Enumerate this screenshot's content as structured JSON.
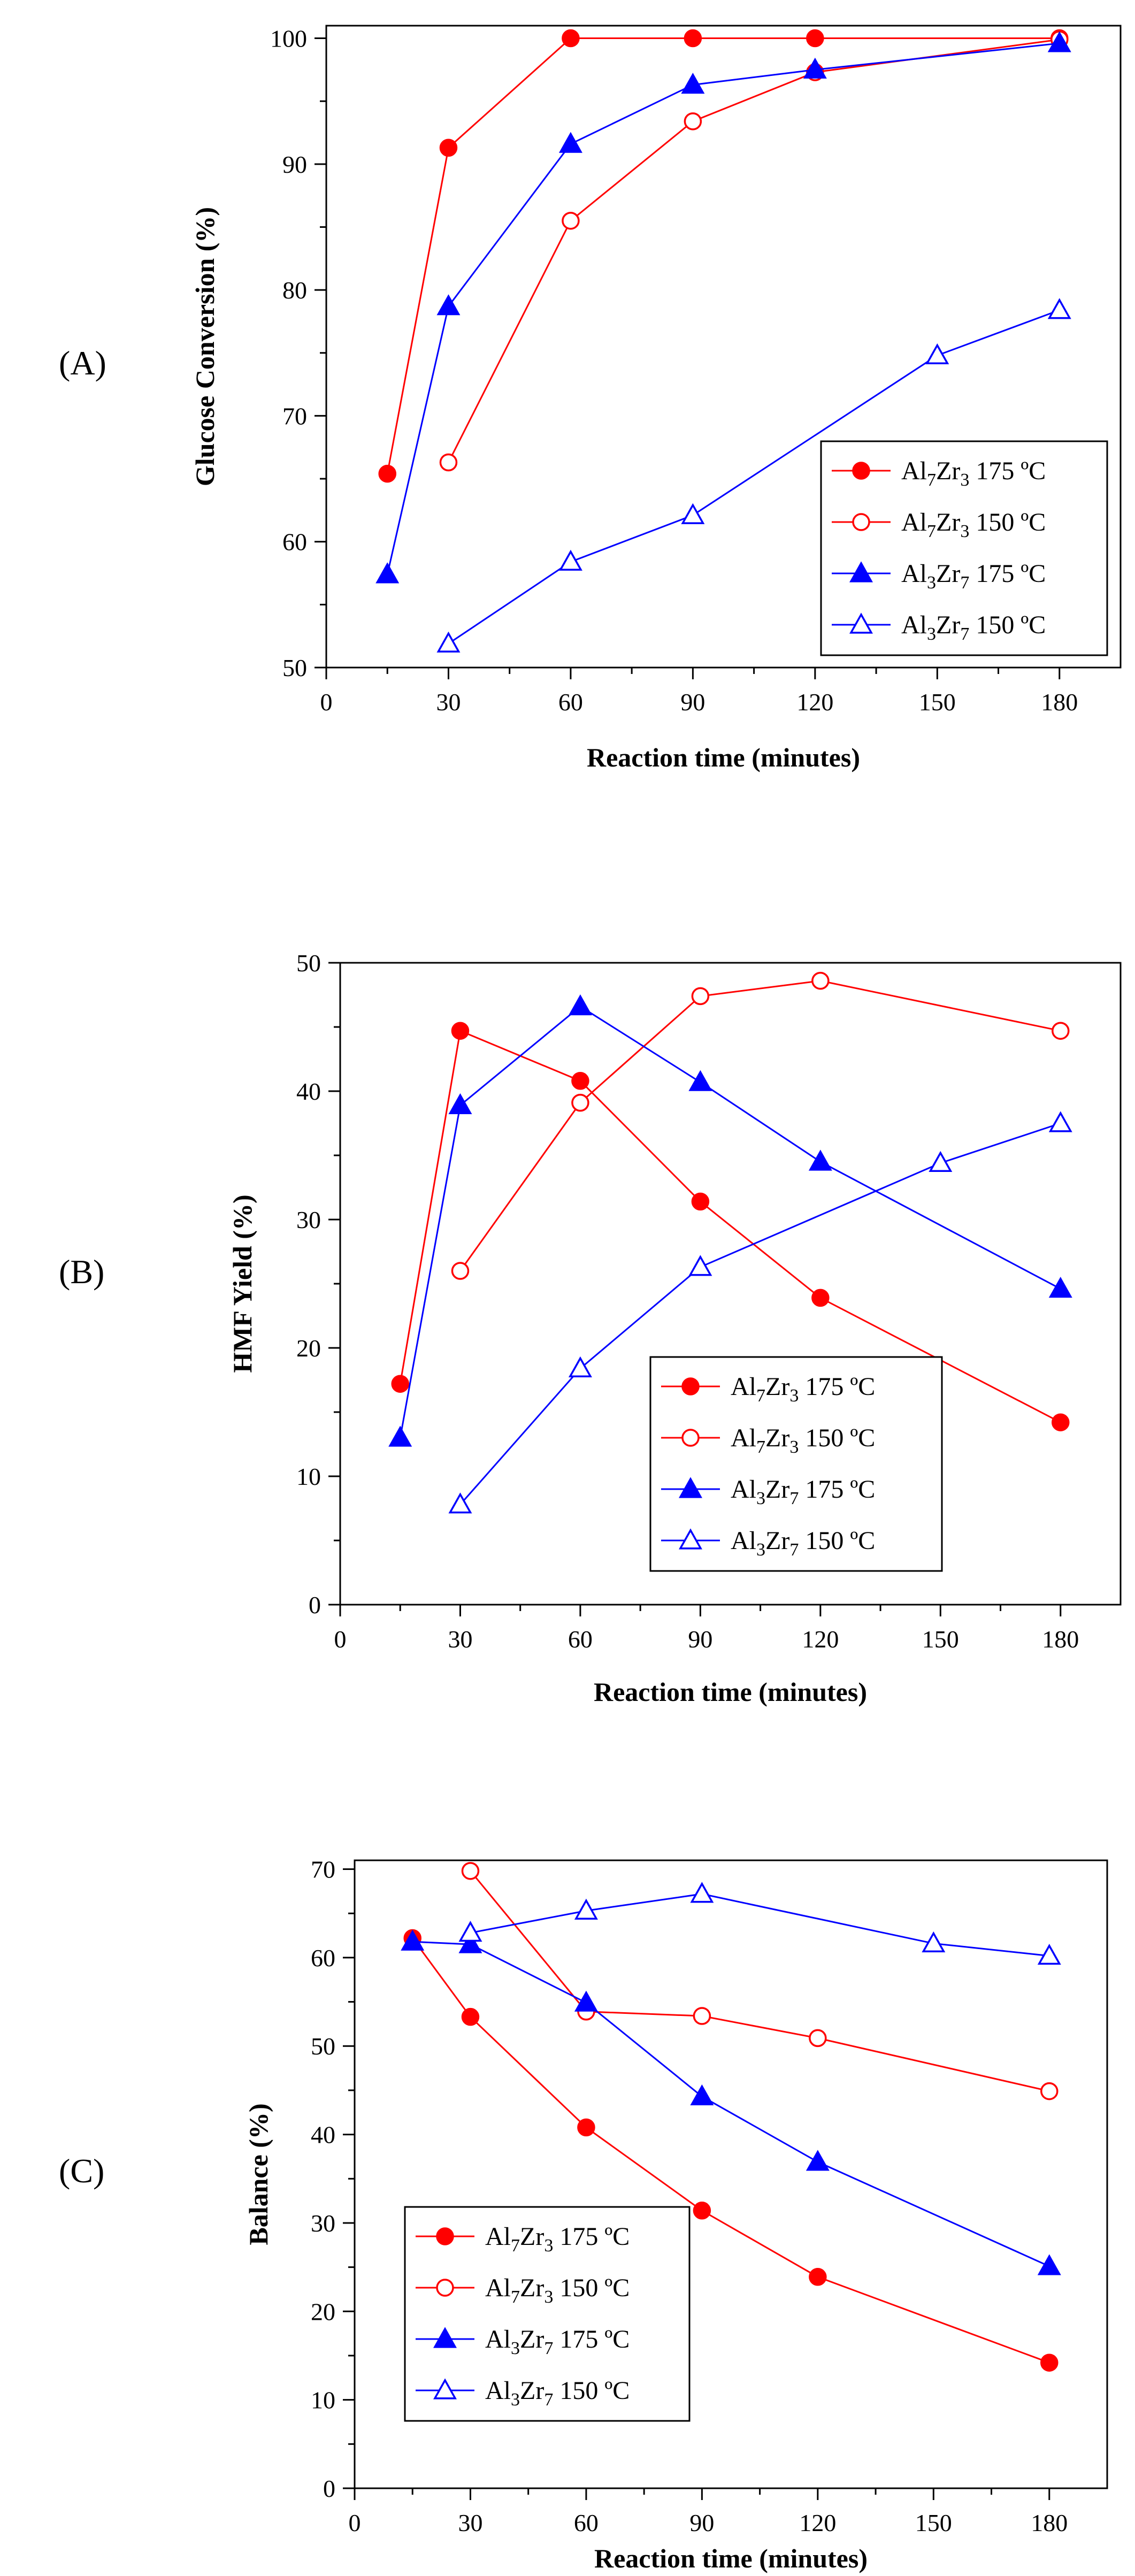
{
  "chart_data": [
    {
      "type": "line",
      "panel_label": "(A)",
      "xlabel": "Reaction time (minutes)",
      "ylabel": "Glucose Conversion (%)",
      "xlim": [
        0,
        195
      ],
      "ylim": [
        50,
        101
      ],
      "xticks": [
        0,
        30,
        60,
        90,
        120,
        150,
        180
      ],
      "yticks": [
        50,
        60,
        70,
        80,
        90,
        100
      ],
      "legend_position": "bottom-right",
      "series": [
        {
          "name": "Al7Zr3 175 ºC",
          "label_parts": [
            "Al",
            "7",
            "Zr",
            "3",
            " 175 ºC"
          ],
          "color": "#ff0000",
          "marker": "circle",
          "filled": true,
          "x": [
            15,
            30,
            60,
            90,
            120,
            180
          ],
          "values": [
            65.4,
            91.3,
            100,
            100,
            100,
            100
          ]
        },
        {
          "name": "Al7Zr3 150 ºC",
          "label_parts": [
            "Al",
            "7",
            "Zr",
            "3",
            " 150 ºC"
          ],
          "color": "#ff0000",
          "marker": "circle",
          "filled": false,
          "x": [
            30,
            60,
            90,
            120,
            180
          ],
          "values": [
            66.3,
            85.5,
            93.4,
            97.3,
            99.9
          ]
        },
        {
          "name": "Al3Zr7 175 ºC",
          "label_parts": [
            "Al",
            "3",
            "Zr",
            "7",
            " 175 ºC"
          ],
          "color": "#0000ff",
          "marker": "triangle",
          "filled": true,
          "x": [
            15,
            30,
            60,
            90,
            120,
            180
          ],
          "values": [
            57.4,
            78.7,
            91.6,
            96.3,
            97.5,
            99.6
          ]
        },
        {
          "name": "Al3Zr7 150 ºC",
          "label_parts": [
            "Al",
            "3",
            "Zr",
            "7",
            " 150 ºC"
          ],
          "color": "#0000ff",
          "marker": "triangle",
          "filled": false,
          "x": [
            30,
            60,
            90,
            150,
            180
          ],
          "values": [
            51.9,
            58.4,
            62.1,
            74.8,
            78.4
          ]
        }
      ]
    },
    {
      "type": "line",
      "panel_label": "(B)",
      "xlabel": "Reaction time (minutes)",
      "ylabel": "HMF Yield (%)",
      "xlim": [
        0,
        195
      ],
      "ylim": [
        0,
        50
      ],
      "xticks": [
        0,
        30,
        60,
        90,
        120,
        150,
        180
      ],
      "yticks": [
        0,
        10,
        20,
        30,
        40,
        50
      ],
      "legend_position": "bottom-center",
      "series": [
        {
          "name": "Al7Zr3 175 ºC",
          "label_parts": [
            "Al",
            "7",
            "Zr",
            "3",
            " 175 ºC"
          ],
          "color": "#ff0000",
          "marker": "circle",
          "filled": true,
          "x": [
            15,
            30,
            60,
            90,
            120,
            180
          ],
          "values": [
            17.2,
            44.7,
            40.8,
            31.4,
            23.9,
            14.2
          ]
        },
        {
          "name": "Al7Zr3 150 ºC",
          "label_parts": [
            "Al",
            "7",
            "Zr",
            "3",
            " 150 ºC"
          ],
          "color": "#ff0000",
          "marker": "circle",
          "filled": false,
          "x": [
            30,
            60,
            90,
            120,
            180
          ],
          "values": [
            26.0,
            39.1,
            47.4,
            48.6,
            44.7
          ]
        },
        {
          "name": "Al3Zr7 175 ºC",
          "label_parts": [
            "Al",
            "3",
            "Zr",
            "7",
            " 175 ºC"
          ],
          "color": "#0000ff",
          "marker": "triangle",
          "filled": true,
          "x": [
            15,
            30,
            60,
            90,
            120,
            180
          ],
          "values": [
            13.0,
            38.9,
            46.6,
            40.7,
            34.5,
            24.6
          ]
        },
        {
          "name": "Al3Zr7 150 ºC",
          "label_parts": [
            "Al",
            "3",
            "Zr",
            "7",
            " 150 ºC"
          ],
          "color": "#0000ff",
          "marker": "triangle",
          "filled": false,
          "x": [
            30,
            60,
            90,
            150,
            180
          ],
          "values": [
            7.8,
            18.4,
            26.3,
            34.4,
            37.5
          ]
        }
      ]
    },
    {
      "type": "line",
      "panel_label": "(C)",
      "xlabel": "Reaction time (minutes)",
      "ylabel": "Balance (%)",
      "xlim": [
        0,
        195
      ],
      "ylim": [
        0,
        71
      ],
      "xticks": [
        0,
        30,
        60,
        90,
        120,
        150,
        180
      ],
      "yticks": [
        0,
        10,
        20,
        30,
        40,
        50,
        60,
        70
      ],
      "legend_position": "bottom-left",
      "series": [
        {
          "name": "Al7Zr3 175 ºC",
          "label_parts": [
            "Al",
            "7",
            "Zr",
            "3",
            " 175 ºC"
          ],
          "color": "#ff0000",
          "marker": "circle",
          "filled": true,
          "x": [
            15,
            30,
            60,
            90,
            120,
            180
          ],
          "values": [
            62.2,
            53.3,
            40.8,
            31.4,
            23.9,
            14.2
          ]
        },
        {
          "name": "Al7Zr3 150 ºC",
          "label_parts": [
            "Al",
            "7",
            "Zr",
            "3",
            " 150 ºC"
          ],
          "color": "#ff0000",
          "marker": "circle",
          "filled": false,
          "x": [
            30,
            60,
            90,
            120,
            180
          ],
          "values": [
            69.8,
            53.9,
            53.4,
            50.9,
            44.9
          ]
        },
        {
          "name": "Al3Zr7 175 ºC",
          "label_parts": [
            "Al",
            "3",
            "Zr",
            "7",
            " 175 ºC"
          ],
          "color": "#0000ff",
          "marker": "triangle",
          "filled": true,
          "x": [
            15,
            30,
            60,
            90,
            120,
            180
          ],
          "values": [
            61.8,
            61.5,
            54.9,
            44.3,
            36.9,
            25.1
          ]
        },
        {
          "name": "Al3Zr7 150 ºC",
          "label_parts": [
            "Al",
            "3",
            "Zr",
            "7",
            " 150 ºC"
          ],
          "color": "#0000ff",
          "marker": "triangle",
          "filled": false,
          "x": [
            30,
            60,
            90,
            150,
            180
          ],
          "values": [
            62.8,
            65.3,
            67.2,
            61.6,
            60.2
          ]
        }
      ]
    }
  ]
}
